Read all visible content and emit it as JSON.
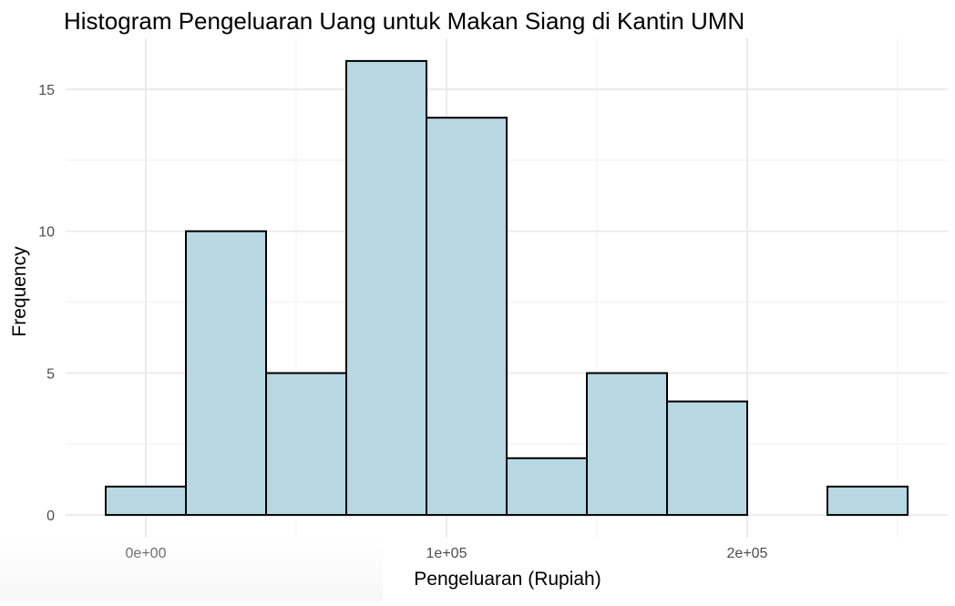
{
  "chart_data": {
    "type": "bar",
    "title": "Histogram Pengeluaran Uang untuk Makan Siang di Kantin UMN",
    "xlabel": "Pengeluaran (Rupiah)",
    "ylabel": "Frequency",
    "bins": [
      {
        "x0": -13333,
        "x1": 13333,
        "count": 1
      },
      {
        "x0": 13333,
        "x1": 40000,
        "count": 10
      },
      {
        "x0": 40000,
        "x1": 66667,
        "count": 5
      },
      {
        "x0": 66667,
        "x1": 93333,
        "count": 16
      },
      {
        "x0": 93333,
        "x1": 120000,
        "count": 14
      },
      {
        "x0": 120000,
        "x1": 146667,
        "count": 2
      },
      {
        "x0": 146667,
        "x1": 173333,
        "count": 5
      },
      {
        "x0": 173333,
        "x1": 200000,
        "count": 4
      },
      {
        "x0": 200000,
        "x1": 226667,
        "count": 0
      },
      {
        "x0": 226667,
        "x1": 253333,
        "count": 1
      }
    ],
    "x_ticks": [
      {
        "value": 0,
        "label": "0e+00"
      },
      {
        "value": 100000,
        "label": "1e+05"
      },
      {
        "value": 200000,
        "label": "2e+05"
      }
    ],
    "y_ticks": [
      {
        "value": 0,
        "label": "0"
      },
      {
        "value": 5,
        "label": "5"
      },
      {
        "value": 10,
        "label": "10"
      },
      {
        "value": 15,
        "label": "15"
      }
    ],
    "x_minor_ticks": [
      -50000,
      50000,
      150000,
      250000
    ],
    "y_minor_ticks": [
      2.5,
      7.5,
      12.5
    ],
    "xlim": [
      -26667,
      266667
    ],
    "ylim": [
      -0.8,
      16.8
    ],
    "grid": true,
    "bar_fill": "#b7d8e3",
    "bar_outline": "#000000"
  }
}
